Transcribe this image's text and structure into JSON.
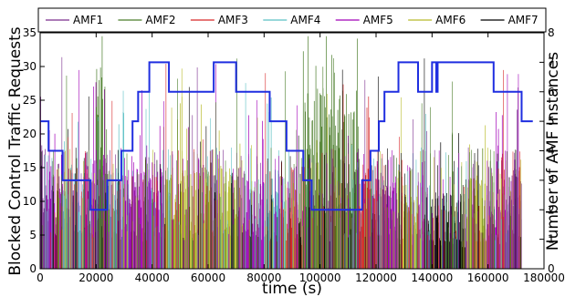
{
  "chart_data": {
    "type": "line",
    "xlabel": "time (s)",
    "ylabel_left": "Blocked Control Traffic Requests",
    "ylabel_right": "Number of AMF Instances",
    "xlim": [
      0,
      180000
    ],
    "ylim_left": [
      0,
      35
    ],
    "ylim_right": [
      0,
      8
    ],
    "x_ticks": [
      0,
      20000,
      40000,
      60000,
      80000,
      100000,
      120000,
      140000,
      160000,
      180000
    ],
    "x_tick_labels": [
      "0",
      "20000",
      "40000",
      "60000",
      "80000",
      "100000",
      "120000",
      "140000",
      "160000",
      "180000"
    ],
    "y_left_ticks": [
      0,
      5,
      10,
      15,
      20,
      25,
      30,
      35
    ],
    "y_left_tick_labels": [
      "0",
      "5",
      "10",
      "15",
      "20",
      "25",
      "30",
      "35"
    ],
    "y_right_ticks": [
      0,
      1,
      2,
      3,
      4,
      5,
      6,
      7,
      8
    ],
    "y_right_tick_labels": [
      "0",
      "1",
      "2",
      "3",
      "4",
      "5",
      "6",
      "7",
      "8"
    ],
    "legend_position": "top",
    "series": [
      {
        "name": "AMF1",
        "color": "#7b2d8e"
      },
      {
        "name": "AMF2",
        "color": "#4a7d2a"
      },
      {
        "name": "AMF3",
        "color": "#d62728"
      },
      {
        "name": "AMF4",
        "color": "#5bc0c4"
      },
      {
        "name": "AMF5",
        "color": "#a100b8"
      },
      {
        "name": "AMF6",
        "color": "#b8bb2a"
      },
      {
        "name": "AMF7",
        "color": "#000000"
      }
    ],
    "instances_series": {
      "color": "#1f2ee0",
      "axis": "right",
      "steps": [
        {
          "x": 0,
          "y": 5
        },
        {
          "x": 3000,
          "y": 4
        },
        {
          "x": 8000,
          "y": 3
        },
        {
          "x": 18000,
          "y": 2
        },
        {
          "x": 24000,
          "y": 3
        },
        {
          "x": 29000,
          "y": 4
        },
        {
          "x": 33000,
          "y": 5
        },
        {
          "x": 35000,
          "y": 6
        },
        {
          "x": 39000,
          "y": 7
        },
        {
          "x": 46000,
          "y": 6
        },
        {
          "x": 62000,
          "y": 7
        },
        {
          "x": 70000,
          "y": 6
        },
        {
          "x": 82000,
          "y": 5
        },
        {
          "x": 88000,
          "y": 4
        },
        {
          "x": 94000,
          "y": 3
        },
        {
          "x": 97000,
          "y": 2
        },
        {
          "x": 115000,
          "y": 3
        },
        {
          "x": 118000,
          "y": 4
        },
        {
          "x": 121000,
          "y": 5
        },
        {
          "x": 123000,
          "y": 6
        },
        {
          "x": 128000,
          "y": 7
        },
        {
          "x": 135000,
          "y": 6
        },
        {
          "x": 140000,
          "y": 7
        },
        {
          "x": 141500,
          "y": 6
        },
        {
          "x": 142000,
          "y": 7
        },
        {
          "x": 162000,
          "y": 6
        },
        {
          "x": 172000,
          "y": 5
        },
        {
          "x": 176000,
          "y": 5
        }
      ]
    },
    "dominant_segments": [
      {
        "series": 0,
        "x0": 0,
        "x1": 2500,
        "level": 16
      },
      {
        "series": 4,
        "x0": 2500,
        "x1": 8000,
        "level": 14
      },
      {
        "series": 3,
        "x0": 8000,
        "x1": 16000,
        "level": 12
      },
      {
        "series": 4,
        "x0": 16000,
        "x1": 24000,
        "level": 14
      },
      {
        "series": 3,
        "x0": 24000,
        "x1": 30000,
        "level": 12
      },
      {
        "series": 1,
        "x0": 20000,
        "x1": 24500,
        "level": 24
      },
      {
        "series": 4,
        "x0": 30000,
        "x1": 33000,
        "level": 14
      },
      {
        "series": 4,
        "x0": 33000,
        "x1": 44000,
        "level": 13
      },
      {
        "series": 5,
        "x0": 44000,
        "x1": 62000,
        "level": 12
      },
      {
        "series": 5,
        "x0": 62000,
        "x1": 72000,
        "level": 13
      },
      {
        "series": 4,
        "x0": 72000,
        "x1": 80000,
        "level": 11
      },
      {
        "series": 3,
        "x0": 80000,
        "x1": 88000,
        "level": 12
      },
      {
        "series": 2,
        "x0": 88000,
        "x1": 94000,
        "level": 10
      },
      {
        "series": 1,
        "x0": 94000,
        "x1": 114000,
        "level": 22
      },
      {
        "series": 2,
        "x0": 114000,
        "x1": 120000,
        "level": 12
      },
      {
        "series": 4,
        "x0": 120000,
        "x1": 128000,
        "level": 11
      },
      {
        "series": 5,
        "x0": 128000,
        "x1": 138000,
        "level": 10
      },
      {
        "series": 6,
        "x0": 138000,
        "x1": 152000,
        "level": 9
      },
      {
        "series": 5,
        "x0": 152000,
        "x1": 160000,
        "level": 11
      },
      {
        "series": 4,
        "x0": 160000,
        "x1": 168000,
        "level": 10
      },
      {
        "series": 0,
        "x0": 168000,
        "x1": 172000,
        "level": 13
      }
    ]
  }
}
